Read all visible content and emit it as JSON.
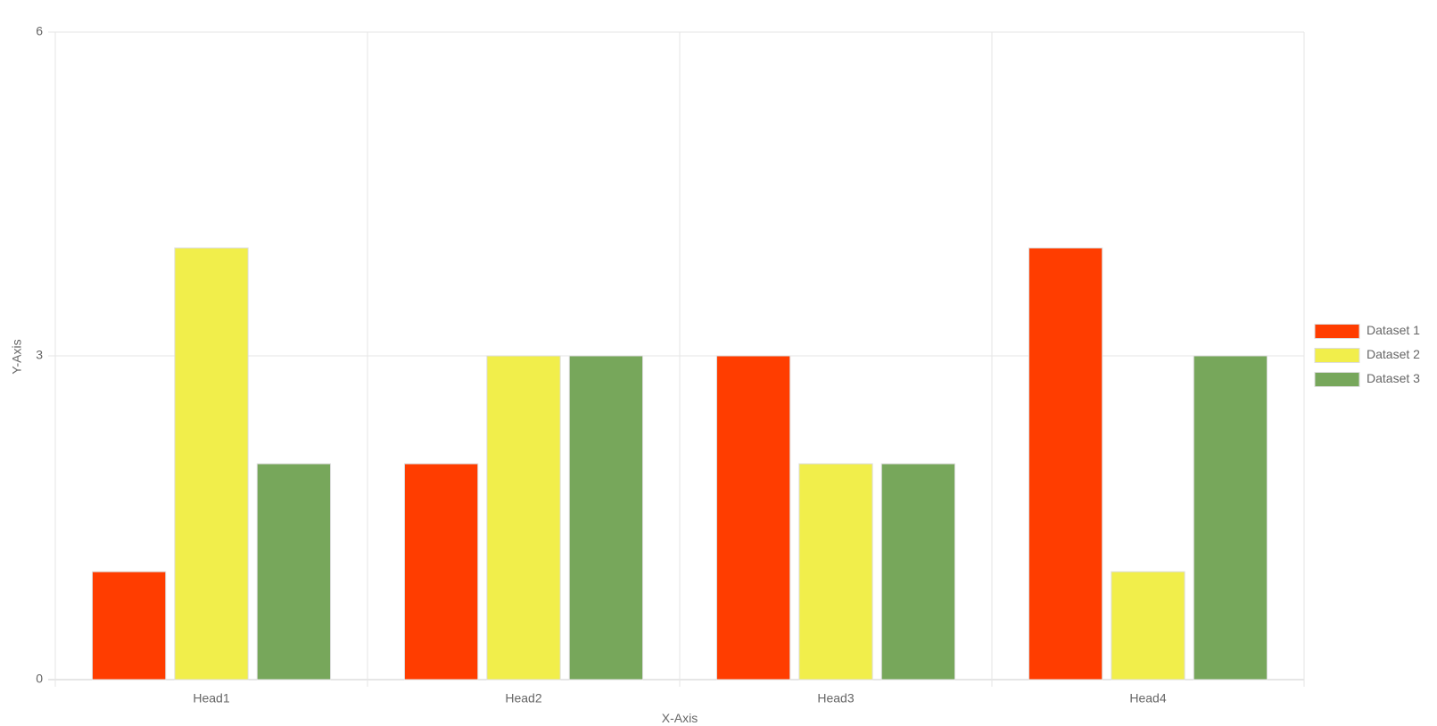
{
  "chart_data": {
    "type": "bar",
    "categories": [
      "Head1",
      "Head2",
      "Head3",
      "Head4"
    ],
    "series": [
      {
        "name": "Dataset 1",
        "color": "#ff3d00",
        "values": [
          1,
          2,
          3,
          4
        ]
      },
      {
        "name": "Dataset 2",
        "color": "#f1ee4b",
        "values": [
          4,
          3,
          2,
          1
        ]
      },
      {
        "name": "Dataset 3",
        "color": "#77a75b",
        "values": [
          2,
          3,
          2,
          3
        ]
      }
    ],
    "x_label": "X-Axis",
    "y_label": "Y-Axis",
    "ylim": [
      0,
      6
    ],
    "yticks": [
      0,
      3,
      6
    ],
    "grid": true,
    "legend": "right"
  }
}
